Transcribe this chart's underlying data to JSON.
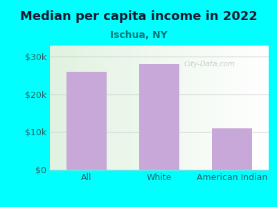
{
  "title": "Median per capita income in 2022",
  "subtitle": "Ischua, NY",
  "categories": [
    "All",
    "White",
    "American Indian"
  ],
  "values": [
    26000,
    28000,
    11000
  ],
  "bar_color": "#c8a8d8",
  "background_color": "#00ffff",
  "title_color": "#1a1a2e",
  "subtitle_color": "#007878",
  "tick_label_color": "#2a6060",
  "yticks": [
    0,
    10000,
    20000,
    30000
  ],
  "ytick_labels": [
    "$0",
    "$10k",
    "$20k",
    "$30k"
  ],
  "ylim": [
    0,
    33000
  ],
  "watermark": "City-Data.com",
  "watermark_color": "#b8c8c8",
  "grid_color": "#cccccc",
  "title_fontsize": 13,
  "subtitle_fontsize": 10,
  "tick_fontsize": 9
}
